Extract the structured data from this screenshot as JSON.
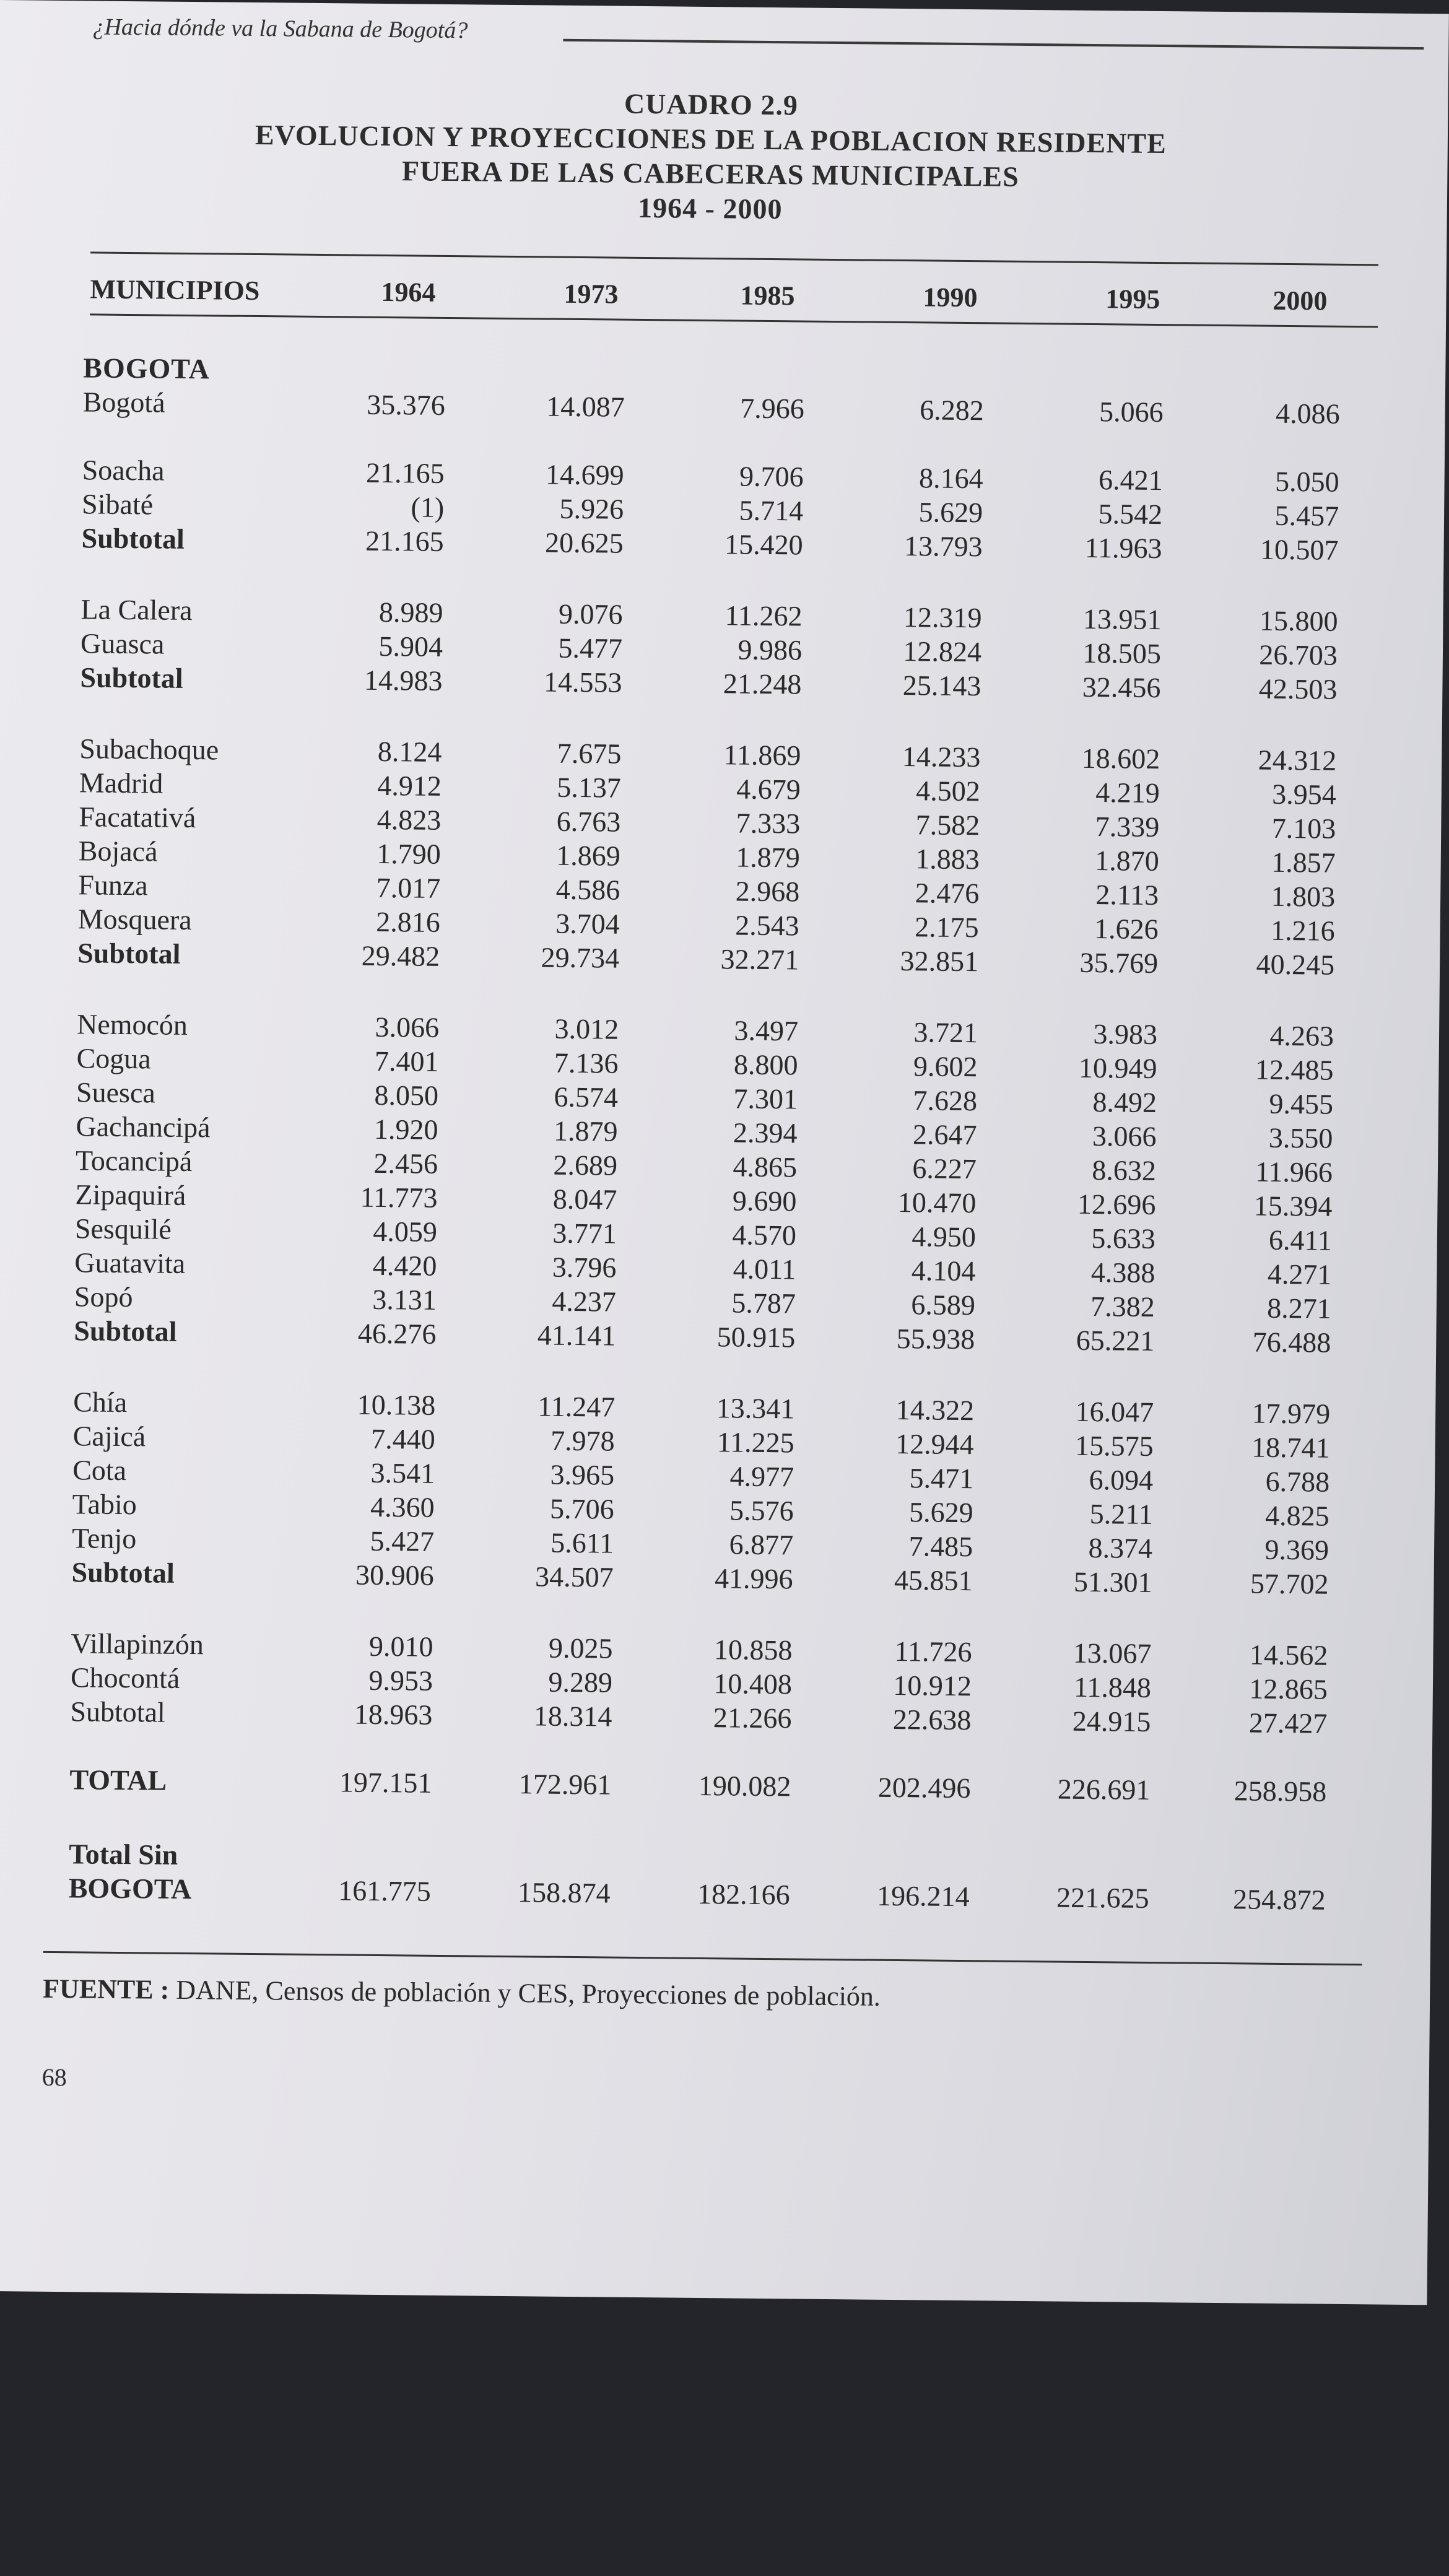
{
  "running_head": "¿Hacia dónde va la Sabana de Bogotá?",
  "title": {
    "label": "CUADRO 2.9",
    "line1": "EVOLUCION Y PROYECCIONES DE LA POBLACION RESIDENTE",
    "line2": "FUERA DE LAS CABECERAS MUNICIPALES",
    "years": "1964 - 2000"
  },
  "table": {
    "columns": [
      "MUNICIPIOS",
      "1964",
      "1973",
      "1985",
      "1990",
      "1995",
      "2000"
    ],
    "rows": [
      {
        "name": "BOGOTA",
        "kind": "grp",
        "values": []
      },
      {
        "name": "Bogotá",
        "kind": "row",
        "values": [
          "35.376",
          "14.087",
          "7.966",
          "6.282",
          "5.066",
          "4.086"
        ]
      },
      {
        "name": "Soacha",
        "kind": "row",
        "values": [
          "21.165",
          "14.699",
          "9.706",
          "8.164",
          "6.421",
          "5.050"
        ]
      },
      {
        "name": "Sibaté",
        "kind": "row",
        "values": [
          "(1)",
          "5.926",
          "5.714",
          "5.629",
          "5.542",
          "5.457"
        ]
      },
      {
        "name": "Subtotal",
        "kind": "sub",
        "values": [
          "21.165",
          "20.625",
          "15.420",
          "13.793",
          "11.963",
          "10.507"
        ]
      },
      {
        "name": "La Calera",
        "kind": "row",
        "values": [
          "8.989",
          "9.076",
          "11.262",
          "12.319",
          "13.951",
          "15.800"
        ]
      },
      {
        "name": "Guasca",
        "kind": "row",
        "values": [
          "5.904",
          "5.477",
          "9.986",
          "12.824",
          "18.505",
          "26.703"
        ]
      },
      {
        "name": "Subtotal",
        "kind": "sub",
        "values": [
          "14.983",
          "14.553",
          "21.248",
          "25.143",
          "32.456",
          "42.503"
        ]
      },
      {
        "name": "Subachoque",
        "kind": "row",
        "values": [
          "8.124",
          "7.675",
          "11.869",
          "14.233",
          "18.602",
          "24.312"
        ]
      },
      {
        "name": "Madrid",
        "kind": "row",
        "values": [
          "4.912",
          "5.137",
          "4.679",
          "4.502",
          "4.219",
          "3.954"
        ]
      },
      {
        "name": "Facatativá",
        "kind": "row",
        "values": [
          "4.823",
          "6.763",
          "7.333",
          "7.582",
          "7.339",
          "7.103"
        ]
      },
      {
        "name": "Bojacá",
        "kind": "row",
        "values": [
          "1.790",
          "1.869",
          "1.879",
          "1.883",
          "1.870",
          "1.857"
        ]
      },
      {
        "name": "Funza",
        "kind": "row",
        "values": [
          "7.017",
          "4.586",
          "2.968",
          "2.476",
          "2.113",
          "1.803"
        ]
      },
      {
        "name": "Mosquera",
        "kind": "row",
        "values": [
          "2.816",
          "3.704",
          "2.543",
          "2.175",
          "1.626",
          "1.216"
        ]
      },
      {
        "name": "Subtotal",
        "kind": "sub",
        "values": [
          "29.482",
          "29.734",
          "32.271",
          "32.851",
          "35.769",
          "40.245"
        ]
      },
      {
        "name": "Nemocón",
        "kind": "row",
        "values": [
          "3.066",
          "3.012",
          "3.497",
          "3.721",
          "3.983",
          "4.263"
        ]
      },
      {
        "name": "Cogua",
        "kind": "row",
        "values": [
          "7.401",
          "7.136",
          "8.800",
          "9.602",
          "10.949",
          "12.485"
        ]
      },
      {
        "name": "Suesca",
        "kind": "row",
        "values": [
          "8.050",
          "6.574",
          "7.301",
          "7.628",
          "8.492",
          "9.455"
        ]
      },
      {
        "name": "Gachancipá",
        "kind": "row",
        "values": [
          "1.920",
          "1.879",
          "2.394",
          "2.647",
          "3.066",
          "3.550"
        ]
      },
      {
        "name": "Tocancipá",
        "kind": "row",
        "values": [
          "2.456",
          "2.689",
          "4.865",
          "6.227",
          "8.632",
          "11.966"
        ]
      },
      {
        "name": "Zipaquirá",
        "kind": "row",
        "values": [
          "11.773",
          "8.047",
          "9.690",
          "10.470",
          "12.696",
          "15.394"
        ]
      },
      {
        "name": "Sesquilé",
        "kind": "row",
        "values": [
          "4.059",
          "3.771",
          "4.570",
          "4.950",
          "5.633",
          "6.411"
        ]
      },
      {
        "name": "Guatavita",
        "kind": "row",
        "values": [
          "4.420",
          "3.796",
          "4.011",
          "4.104",
          "4.388",
          "4.271"
        ]
      },
      {
        "name": "Sopó",
        "kind": "row",
        "values": [
          "3.131",
          "4.237",
          "5.787",
          "6.589",
          "7.382",
          "8.271"
        ]
      },
      {
        "name": "Subtotal",
        "kind": "sub",
        "values": [
          "46.276",
          "41.141",
          "50.915",
          "55.938",
          "65.221",
          "76.488"
        ]
      },
      {
        "name": "Chía",
        "kind": "row",
        "values": [
          "10.138",
          "11.247",
          "13.341",
          "14.322",
          "16.047",
          "17.979"
        ]
      },
      {
        "name": "Cajicá",
        "kind": "row",
        "values": [
          "7.440",
          "7.978",
          "11.225",
          "12.944",
          "15.575",
          "18.741"
        ]
      },
      {
        "name": "Cota",
        "kind": "row",
        "values": [
          "3.541",
          "3.965",
          "4.977",
          "5.471",
          "6.094",
          "6.788"
        ]
      },
      {
        "name": "Tabio",
        "kind": "row",
        "values": [
          "4.360",
          "5.706",
          "5.576",
          "5.629",
          "5.211",
          "4.825"
        ]
      },
      {
        "name": "Tenjo",
        "kind": "row",
        "values": [
          "5.427",
          "5.611",
          "6.877",
          "7.485",
          "8.374",
          "9.369"
        ]
      },
      {
        "name": "Subtotal",
        "kind": "sub",
        "values": [
          "30.906",
          "34.507",
          "41.996",
          "45.851",
          "51.301",
          "57.702"
        ]
      },
      {
        "name": "Villapinzón",
        "kind": "row",
        "values": [
          "9.010",
          "9.025",
          "10.858",
          "11.726",
          "13.067",
          "14.562"
        ]
      },
      {
        "name": "Chocontá",
        "kind": "row",
        "values": [
          "9.953",
          "9.289",
          "10.408",
          "10.912",
          "11.848",
          "12.865"
        ]
      },
      {
        "name": "Subtotal",
        "kind": "row",
        "values": [
          "18.963",
          "18.314",
          "21.266",
          "22.638",
          "24.915",
          "27.427"
        ]
      },
      {
        "name": "TOTAL",
        "kind": "tot",
        "values": [
          "197.151",
          "172.961",
          "190.082",
          "202.496",
          "226.691",
          "258.958"
        ]
      },
      {
        "name": "Total Sin",
        "kind": "tot",
        "values": []
      },
      {
        "name": "BOGOTA",
        "kind": "tot",
        "values": [
          "161.775",
          "158.874",
          "182.166",
          "196.214",
          "221.625",
          "254.872"
        ]
      }
    ]
  },
  "source": {
    "label": "FUENTE :",
    "text": " DANE, Censos de población y CES, Proyecciones de población."
  },
  "page_number": "68"
}
